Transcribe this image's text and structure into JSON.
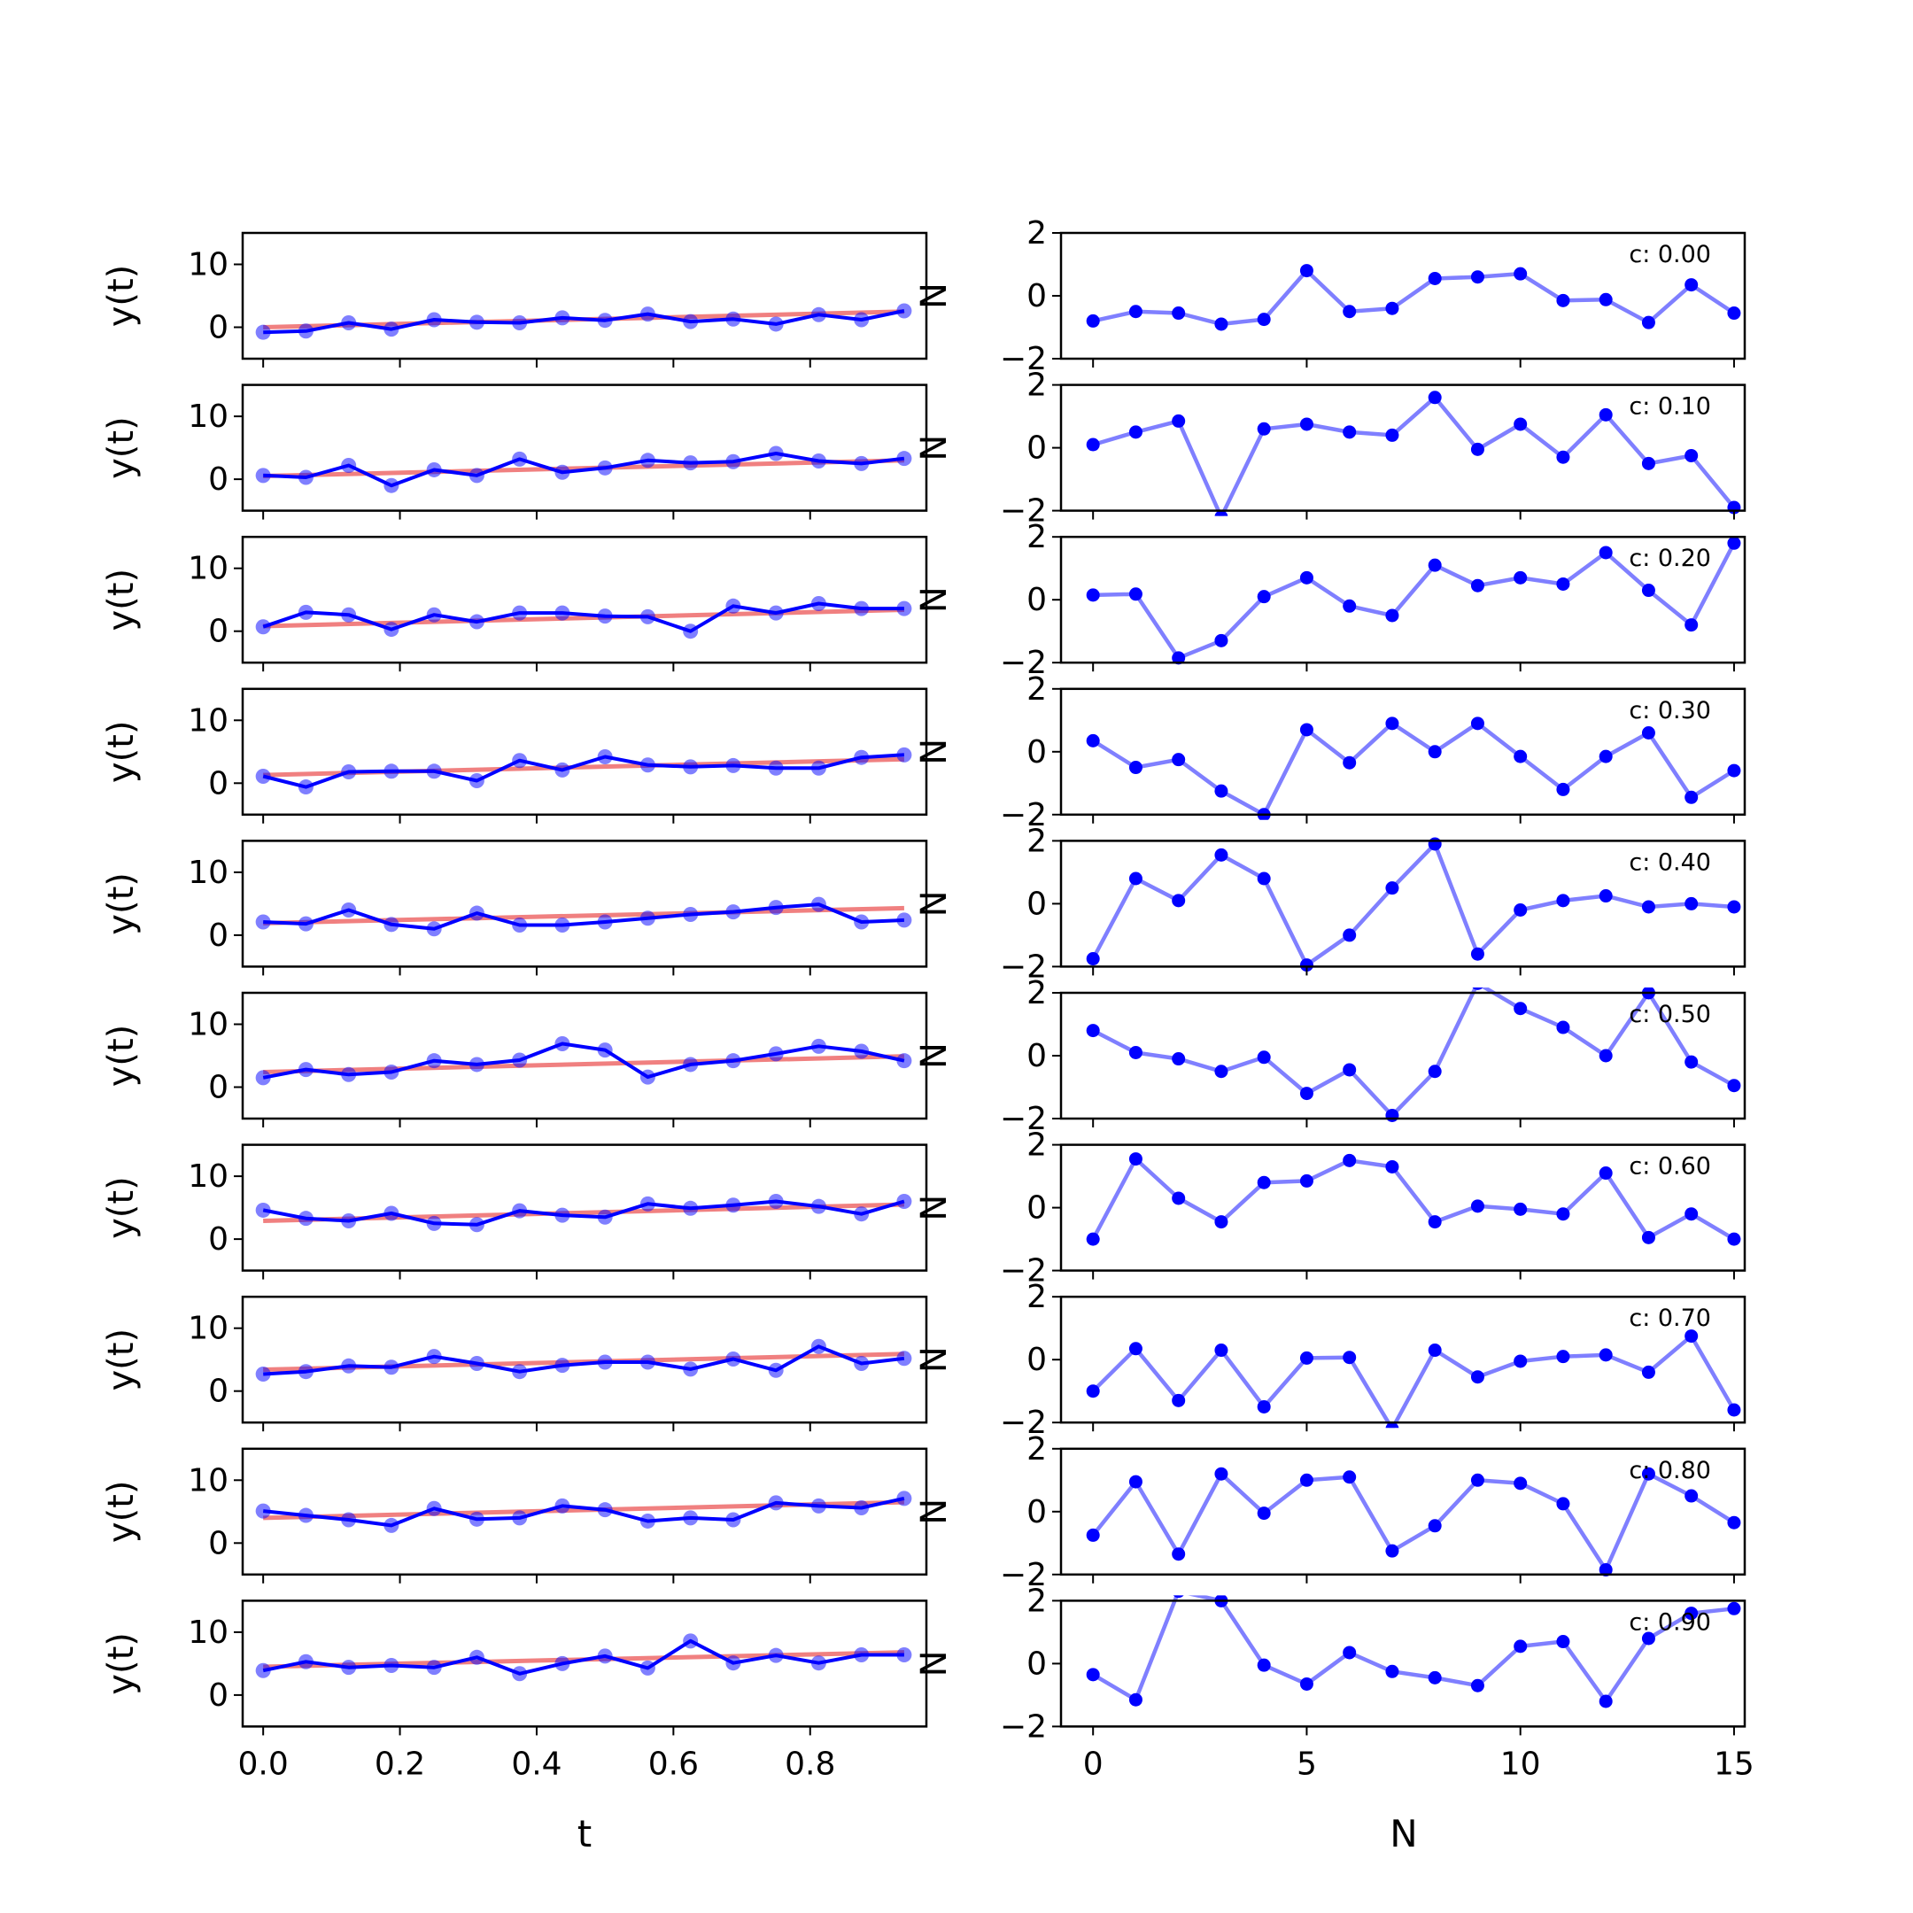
{
  "chart_data": {
    "type": "line",
    "layout": "grid 10 rows x 2 columns",
    "colors": {
      "observed": "#0000ff",
      "trend": "#f08080",
      "noise": "#0000ff"
    },
    "left_column": {
      "type": "line",
      "xlabel": "t",
      "ylabel": "y(t)",
      "xlim": [
        -0.03,
        0.97
      ],
      "ylim": [
        -5,
        15
      ],
      "xticks": [
        "0.0",
        "0.2",
        "0.4",
        "0.6",
        "0.8"
      ],
      "yticks": [
        "0",
        "10"
      ],
      "x": [
        0.0,
        0.0625,
        0.125,
        0.1875,
        0.25,
        0.3125,
        0.375,
        0.4375,
        0.5,
        0.5625,
        0.625,
        0.6875,
        0.75,
        0.8125,
        0.875,
        0.9375
      ]
    },
    "right_column": {
      "type": "line",
      "xlabel": "N",
      "ylabel": "N",
      "xlim": [
        -0.75,
        15.25
      ],
      "ylim": [
        -2,
        2
      ],
      "xticks": [
        "0",
        "5",
        "10",
        "15"
      ],
      "yticks": [
        "−2",
        "0",
        "2"
      ],
      "x": [
        0,
        1,
        2,
        3,
        4,
        5,
        6,
        7,
        8,
        9,
        10,
        11,
        12,
        13,
        14,
        15
      ]
    },
    "rows": [
      {
        "annotation": "c: 0.00",
        "trend": [
          0.0,
          2.5
        ],
        "y": [
          -0.8,
          -0.6,
          0.7,
          -0.3,
          1.2,
          0.8,
          0.7,
          1.5,
          1.1,
          2.1,
          0.9,
          1.3,
          0.5,
          2.0,
          1.2,
          2.6
        ],
        "noise": [
          -0.8,
          -0.5,
          -0.55,
          -0.9,
          -0.75,
          0.8,
          -0.5,
          -0.4,
          0.55,
          0.6,
          0.7,
          -0.15,
          -0.12,
          -0.85,
          0.35,
          -0.55
        ]
      },
      {
        "annotation": "c: 0.10",
        "trend": [
          0.5,
          3.0
        ],
        "y": [
          0.6,
          0.3,
          2.2,
          -1.0,
          1.5,
          0.6,
          3.2,
          1.1,
          1.8,
          3.0,
          2.6,
          2.8,
          4.1,
          2.9,
          2.5,
          3.3
        ],
        "noise": [
          0.1,
          0.5,
          0.85,
          -2.2,
          0.6,
          0.75,
          0.5,
          0.4,
          1.6,
          -0.05,
          0.75,
          -0.3,
          1.05,
          -0.5,
          -0.25,
          -1.9
        ]
      },
      {
        "annotation": "c: 0.20",
        "trend": [
          0.8,
          3.4
        ],
        "y": [
          0.7,
          3.0,
          2.6,
          0.3,
          2.6,
          1.5,
          2.9,
          2.9,
          2.4,
          2.3,
          0.0,
          4.0,
          2.9,
          4.4,
          3.6,
          3.6
        ],
        "noise": [
          0.15,
          0.18,
          -1.85,
          -1.3,
          0.1,
          0.7,
          -0.2,
          -0.5,
          1.1,
          0.45,
          0.7,
          0.5,
          1.5,
          0.3,
          -0.8,
          1.8
        ]
      },
      {
        "annotation": "c: 0.30",
        "trend": [
          1.3,
          3.8
        ],
        "y": [
          1.1,
          -0.6,
          1.8,
          1.9,
          1.9,
          0.4,
          3.6,
          2.1,
          4.2,
          2.9,
          2.6,
          2.8,
          2.4,
          2.4,
          4.1,
          4.5
        ],
        "noise": [
          0.35,
          -0.5,
          -0.25,
          -1.25,
          -2.0,
          0.7,
          -0.35,
          0.9,
          0.0,
          0.9,
          -0.15,
          -1.2,
          -0.15,
          0.6,
          -1.45,
          -0.6
        ]
      },
      {
        "annotation": "c: 0.40",
        "trend": [
          1.9,
          4.3
        ],
        "y": [
          2.1,
          1.8,
          4.0,
          1.7,
          1.0,
          3.5,
          1.6,
          1.6,
          2.1,
          2.7,
          3.3,
          3.7,
          4.4,
          4.9,
          2.1,
          2.4
        ],
        "noise": [
          -1.75,
          0.8,
          0.1,
          1.55,
          0.8,
          -1.95,
          -1.0,
          0.5,
          1.9,
          -1.6,
          -0.2,
          0.1,
          0.25,
          -0.1,
          0.0,
          -0.1
        ]
      },
      {
        "annotation": "c: 0.50",
        "trend": [
          2.4,
          4.9
        ],
        "y": [
          1.5,
          2.8,
          2.0,
          2.4,
          4.2,
          3.6,
          4.3,
          6.9,
          5.9,
          1.6,
          3.6,
          4.2,
          5.3,
          6.5,
          5.7,
          4.2
        ],
        "noise": [
          0.8,
          0.1,
          -0.1,
          -0.5,
          -0.05,
          -1.2,
          -0.45,
          -1.9,
          -0.5,
          2.3,
          1.5,
          0.9,
          0.0,
          2.0,
          -0.2,
          -0.95
        ]
      },
      {
        "annotation": "c: 0.60",
        "trend": [
          2.9,
          5.5
        ],
        "y": [
          4.6,
          3.3,
          2.9,
          4.1,
          2.5,
          2.3,
          4.5,
          3.8,
          3.5,
          5.6,
          4.9,
          5.4,
          6.0,
          5.2,
          4.0,
          6.0
        ],
        "noise": [
          -1.0,
          1.55,
          0.3,
          -0.45,
          0.8,
          0.85,
          1.5,
          1.3,
          -0.45,
          0.05,
          -0.05,
          -0.2,
          1.1,
          -0.95,
          -0.2,
          -1.0
        ]
      },
      {
        "annotation": "c: 0.70",
        "trend": [
          3.4,
          5.9
        ],
        "y": [
          2.7,
          3.1,
          4.0,
          3.8,
          5.5,
          4.4,
          3.1,
          4.1,
          4.6,
          4.6,
          3.5,
          5.1,
          3.3,
          7.1,
          4.4,
          5.2
        ],
        "noise": [
          -1.0,
          0.35,
          -1.3,
          0.3,
          -1.5,
          0.05,
          0.07,
          -2.2,
          0.3,
          -0.55,
          -0.05,
          0.1,
          0.15,
          -0.4,
          0.75,
          -1.6
        ]
      },
      {
        "annotation": "c: 0.80",
        "trend": [
          4.0,
          6.5
        ],
        "y": [
          5.1,
          4.4,
          3.7,
          2.8,
          5.5,
          3.8,
          4.0,
          5.9,
          5.3,
          3.5,
          4.0,
          3.7,
          6.4,
          5.9,
          5.6,
          7.1
        ],
        "noise": [
          -0.75,
          0.95,
          -1.35,
          1.2,
          -0.05,
          1.0,
          1.1,
          -1.25,
          -0.45,
          1.0,
          0.9,
          0.25,
          -1.85,
          1.2,
          0.5,
          -0.35
        ]
      },
      {
        "annotation": "c: 0.90",
        "trend": [
          4.5,
          6.8
        ],
        "y": [
          3.9,
          5.3,
          4.4,
          4.7,
          4.4,
          6.0,
          3.4,
          5.0,
          6.2,
          4.3,
          8.6,
          5.1,
          6.3,
          5.1,
          6.4,
          6.4
        ],
        "noise": [
          -0.35,
          -1.15,
          2.3,
          2.0,
          -0.05,
          -0.65,
          0.35,
          -0.25,
          -0.45,
          -0.7,
          0.55,
          0.7,
          -1.2,
          0.8,
          1.6,
          1.75
        ]
      }
    ]
  }
}
